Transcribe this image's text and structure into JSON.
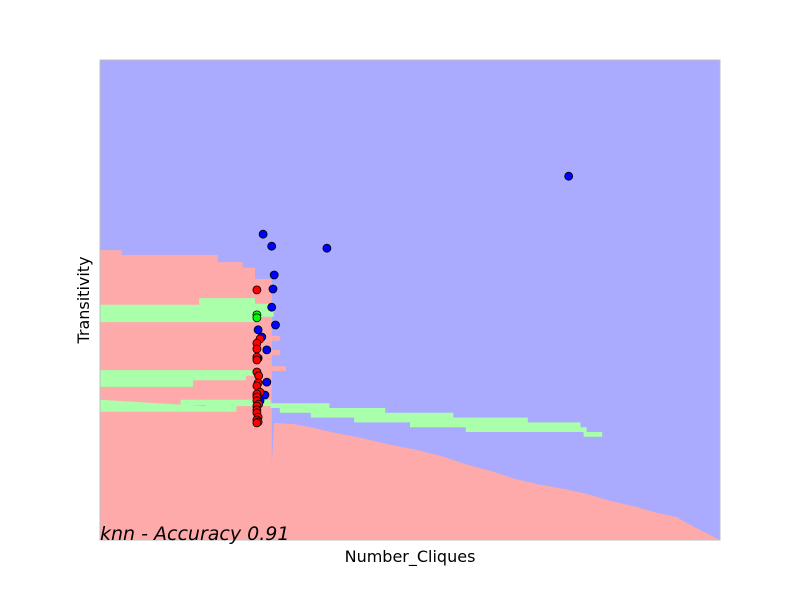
{
  "chart_data": {
    "type": "scatter",
    "title": "",
    "xlabel": "Number_Cliques",
    "ylabel": "Transitivity",
    "annotation": "knn - Accuracy 0.91",
    "xlim": [
      0,
      100
    ],
    "ylim": [
      0,
      100
    ],
    "ticks": "none",
    "grid": false,
    "legend": "none",
    "colors": {
      "region_blue": "#aaaaff",
      "region_green": "#aaffaa",
      "region_red": "#ffaaaa",
      "point_blue": "#0000ff",
      "point_green": "#00ff00",
      "point_red": "#ff0000",
      "frame": "#bfbfbf"
    },
    "decision_regions": [
      {
        "class": "red",
        "polygon": [
          [
            0,
            60.4
          ],
          [
            3.5,
            60.4
          ],
          [
            3.5,
            59.4
          ],
          [
            19,
            59.4
          ],
          [
            19,
            57.9
          ],
          [
            23,
            57.9
          ],
          [
            23,
            56.7
          ],
          [
            25,
            56.7
          ],
          [
            25,
            54.4
          ],
          [
            27.7,
            54.4
          ],
          [
            27.7,
            15.8
          ],
          [
            28.1,
            24.4
          ],
          [
            31.5,
            24.1
          ],
          [
            34.7,
            23.3
          ],
          [
            38,
            22.3
          ],
          [
            42,
            21.3
          ],
          [
            47,
            19.8
          ],
          [
            51,
            18.8
          ],
          [
            55,
            17.5
          ],
          [
            59,
            15.8
          ],
          [
            63,
            14.4
          ],
          [
            67,
            12.7
          ],
          [
            71,
            11.5
          ],
          [
            75,
            10.6
          ],
          [
            78.5,
            9.6
          ],
          [
            82.5,
            8.1
          ],
          [
            86.5,
            6.9
          ],
          [
            90,
            5.6
          ],
          [
            93,
            4.8
          ],
          [
            95,
            3.3
          ],
          [
            96.5,
            2.3
          ],
          [
            98,
            1.3
          ],
          [
            100,
            0
          ],
          [
            0,
            0
          ]
        ]
      },
      {
        "class": "green",
        "polygon": [
          [
            0,
            49.0
          ],
          [
            0,
            45.4
          ],
          [
            25,
            45.4
          ],
          [
            25,
            46.5
          ],
          [
            28,
            46.5
          ],
          [
            28,
            49.2
          ],
          [
            25,
            49.2
          ],
          [
            25,
            50.4
          ],
          [
            16,
            50.4
          ],
          [
            16,
            49.0
          ]
        ]
      },
      {
        "class": "red",
        "polygon": [
          [
            17,
            42.5
          ],
          [
            29,
            42.5
          ],
          [
            29,
            41.5
          ],
          [
            17,
            41.5
          ]
        ]
      },
      {
        "class": "red",
        "polygon": [
          [
            0,
            39.6
          ],
          [
            0,
            36.3
          ],
          [
            5,
            36.3
          ],
          [
            5,
            37.5
          ],
          [
            25.5,
            37.5
          ],
          [
            25.5,
            38.5
          ],
          [
            29,
            38.5
          ],
          [
            29,
            39.6
          ]
        ]
      },
      {
        "class": "red",
        "polygon": [
          [
            22,
            36.2
          ],
          [
            30,
            36.2
          ],
          [
            30,
            35.2
          ],
          [
            22,
            35.2
          ]
        ]
      },
      {
        "class": "green",
        "polygon": [
          [
            0,
            35.4
          ],
          [
            0,
            31.9
          ],
          [
            15,
            31.9
          ],
          [
            15,
            33.3
          ],
          [
            23.5,
            33.3
          ],
          [
            23.5,
            34.2
          ],
          [
            25,
            34.2
          ],
          [
            25,
            35.4
          ]
        ]
      },
      {
        "class": "red",
        "polygon": [
          [
            0,
            31.2
          ],
          [
            0,
            29.2
          ],
          [
            13,
            29.2
          ],
          [
            13,
            28.1
          ],
          [
            17,
            28.1
          ],
          [
            17,
            31.2
          ]
        ]
      },
      {
        "class": "green",
        "polygon": [
          [
            0,
            29.2
          ],
          [
            0,
            26.7
          ],
          [
            22,
            26.7
          ],
          [
            22,
            27.9
          ],
          [
            27.5,
            27.9
          ],
          [
            27.5,
            29.2
          ],
          [
            13,
            29.2
          ],
          [
            13,
            28.1
          ],
          [
            17,
            28.1
          ],
          [
            17,
            27.9
          ]
        ]
      },
      {
        "class": "green",
        "polygon": [
          [
            27.5,
            28.5
          ],
          [
            37,
            28.5
          ],
          [
            37,
            27.5
          ],
          [
            46,
            27.5
          ],
          [
            46,
            26.5
          ],
          [
            57,
            26.5
          ],
          [
            57,
            25.5
          ],
          [
            69,
            25.5
          ],
          [
            69,
            24.5
          ],
          [
            77.5,
            24.5
          ],
          [
            77.5,
            23.5
          ],
          [
            78.5,
            23.5
          ],
          [
            78.5,
            22.5
          ],
          [
            81,
            22.5
          ],
          [
            81,
            21.5
          ],
          [
            78,
            21.5
          ],
          [
            78,
            22.5
          ],
          [
            59,
            22.5
          ],
          [
            59,
            23.5
          ],
          [
            50,
            23.5
          ],
          [
            50,
            24.5
          ],
          [
            41,
            24.5
          ],
          [
            41,
            25.5
          ],
          [
            34,
            25.5
          ],
          [
            34,
            26.5
          ],
          [
            29,
            26.5
          ],
          [
            29,
            27.5
          ],
          [
            27.5,
            27.5
          ]
        ]
      }
    ],
    "series": [
      {
        "class": "blue",
        "points": [
          [
            26.3,
            63.7
          ],
          [
            27.7,
            61.2
          ],
          [
            36.6,
            60.8
          ],
          [
            75.6,
            75.8
          ],
          [
            28.1,
            55.2
          ],
          [
            27.9,
            52.3
          ],
          [
            27.7,
            48.5
          ],
          [
            28.3,
            44.8
          ],
          [
            25.5,
            43.8
          ],
          [
            26.1,
            42.3
          ],
          [
            26.9,
            39.6
          ],
          [
            25.5,
            37.9
          ],
          [
            26.9,
            32.9
          ],
          [
            26.6,
            30.2
          ],
          [
            25.8,
            29.0
          ]
        ]
      },
      {
        "class": "green",
        "points": [
          [
            25.3,
            46.9
          ],
          [
            25.3,
            46.3
          ]
        ]
      },
      {
        "class": "red",
        "points": [
          [
            25.3,
            52.1
          ],
          [
            25.8,
            41.9
          ],
          [
            25.3,
            41.0
          ],
          [
            25.3,
            39.8
          ],
          [
            25.3,
            38.1
          ],
          [
            25.3,
            37.5
          ],
          [
            25.3,
            35.0
          ],
          [
            25.6,
            34.2
          ],
          [
            25.5,
            32.7
          ],
          [
            25.3,
            32.1
          ],
          [
            25.8,
            30.8
          ],
          [
            25.3,
            30.4
          ],
          [
            25.3,
            29.8
          ],
          [
            25.3,
            29.0
          ],
          [
            25.6,
            28.3
          ],
          [
            25.3,
            27.9
          ],
          [
            25.3,
            27.1
          ],
          [
            25.3,
            26.5
          ],
          [
            25.5,
            25.6
          ],
          [
            25.3,
            25.0
          ],
          [
            25.5,
            24.6
          ],
          [
            25.3,
            24.4
          ]
        ]
      }
    ]
  }
}
